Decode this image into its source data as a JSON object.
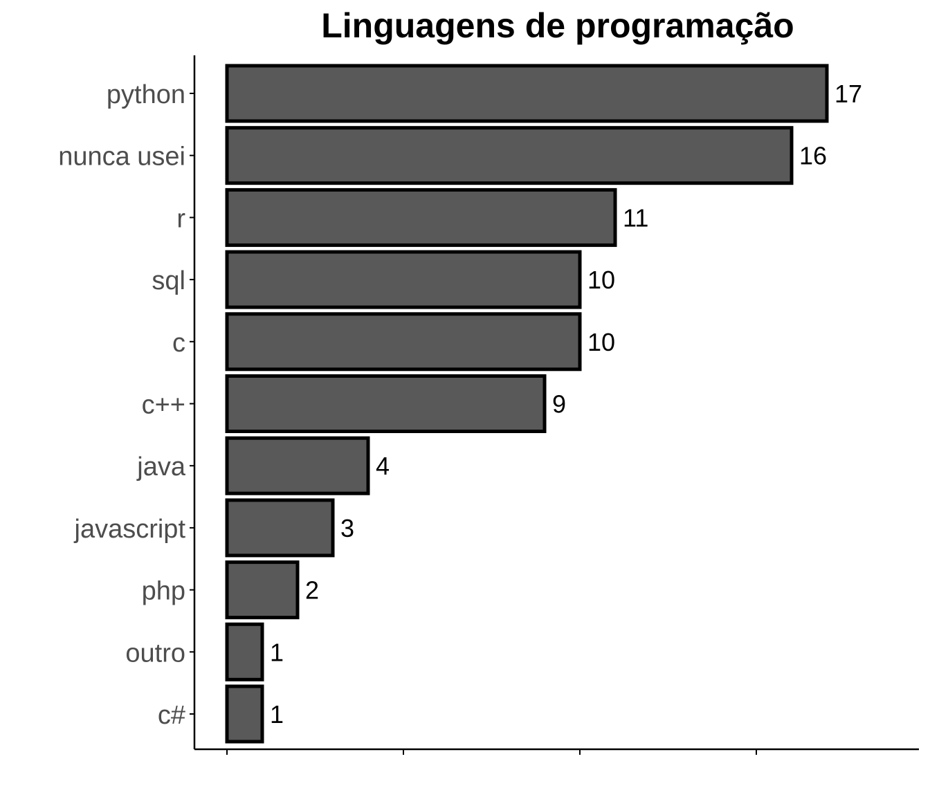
{
  "chart_data": {
    "type": "bar",
    "orientation": "horizontal",
    "title": "Linguagens de programação",
    "xlabel": "",
    "ylabel": "",
    "categories": [
      "python",
      "nunca usei",
      "r",
      "sql",
      "c",
      "c++",
      "java",
      "javascript",
      "php",
      "outro",
      "c#"
    ],
    "values": [
      17,
      16,
      11,
      10,
      10,
      9,
      4,
      3,
      2,
      1,
      1
    ],
    "xlim": [
      0,
      20
    ],
    "x_ticks": [
      0,
      5,
      10,
      15
    ],
    "x_tick_labels_shown": false,
    "grid": false,
    "data_labels": true,
    "colors": {
      "bar_fill": "#595959",
      "bar_outline": "#000000",
      "axis": "#000000",
      "category_text": "#4d4d4d",
      "value_text": "#000000"
    }
  }
}
